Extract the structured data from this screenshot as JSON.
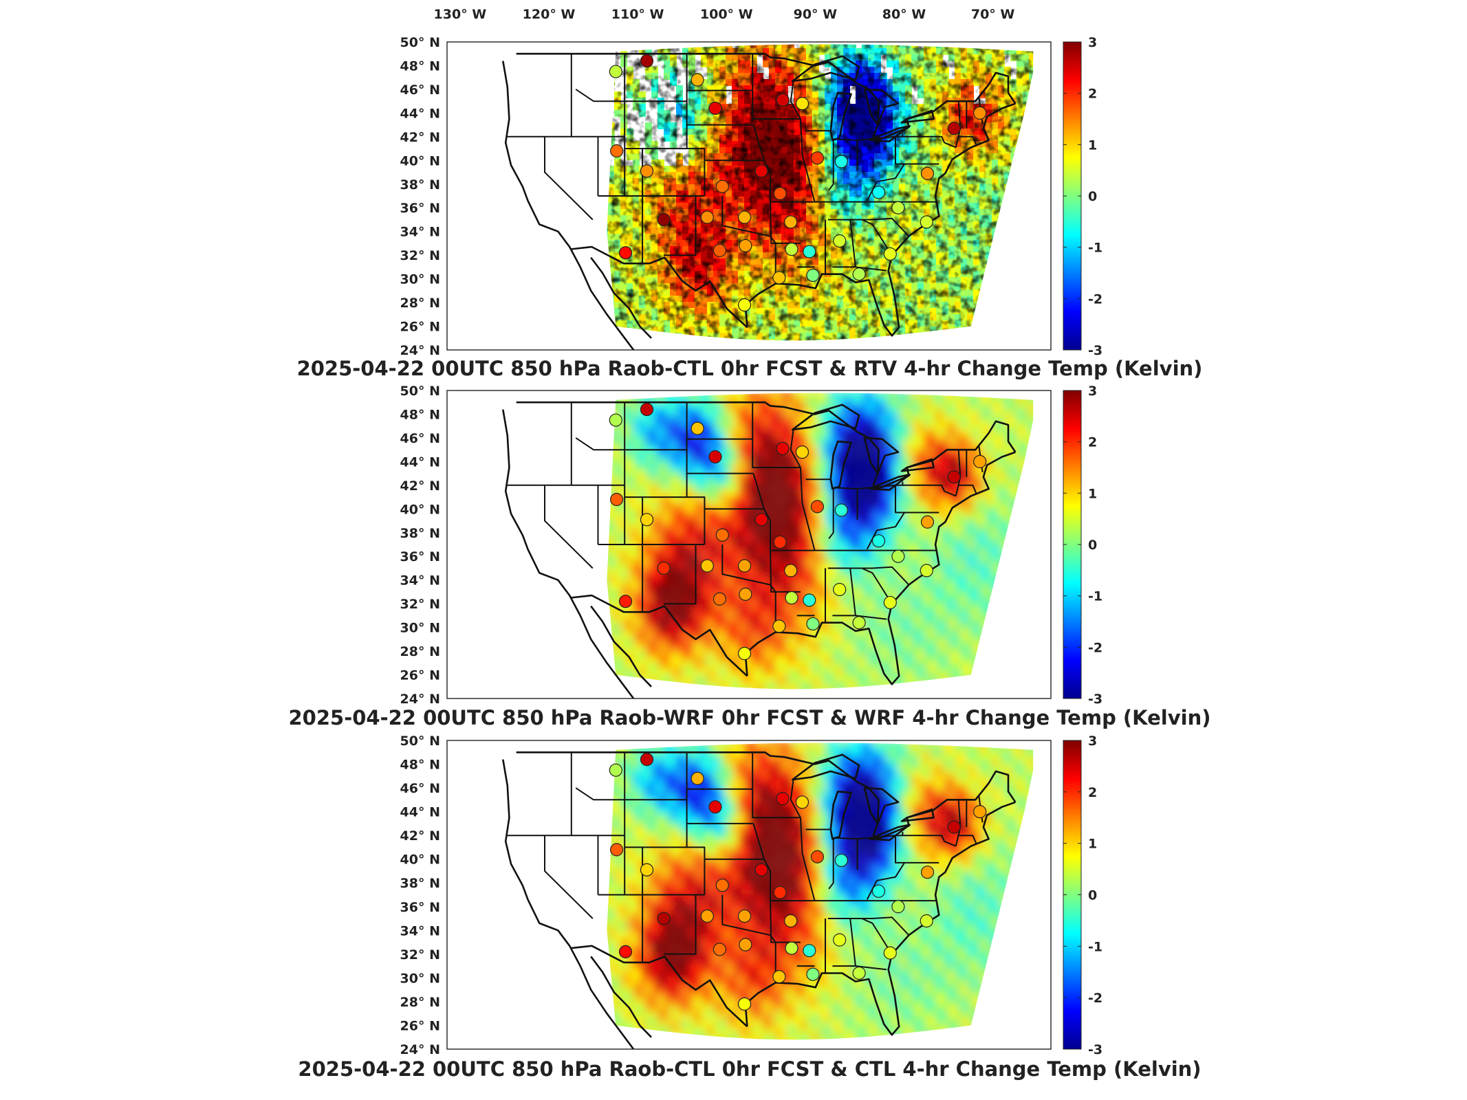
{
  "figure": {
    "top_lon_labels": [
      "130° W",
      "120° W",
      "110° W",
      "100° W",
      "90° W",
      "80° W",
      "70° W"
    ],
    "lat_labels": [
      "50° N",
      "48° N",
      "46° N",
      "44° N",
      "42° N",
      "40° N",
      "38° N",
      "36° N",
      "34° N",
      "32° N",
      "30° N",
      "28° N",
      "26° N",
      "24° N"
    ],
    "colorbar": {
      "min": -3,
      "max": 3,
      "ticks": [
        "3",
        "2",
        "1",
        "0",
        "-1",
        "-2",
        "-3"
      ],
      "colormap": [
        "#00008f",
        "#0000ff",
        "#0080ff",
        "#00ffff",
        "#80ff80",
        "#ffff00",
        "#ff8000",
        "#ff0000",
        "#800000"
      ]
    }
  },
  "panels": [
    {
      "title": "2025-04-22 00UTC 850 hPa Raob-CTL 0hr FCST & RTV 4-hr Change Temp (Kelvin)",
      "field_style": "satellite_retrieval_patchy"
    },
    {
      "title": "2025-04-22 00UTC 850 hPa Raob-WRF 0hr FCST & WRF 4-hr Change Temp (Kelvin)",
      "field_style": "model_smooth"
    },
    {
      "title": "2025-04-22 00UTC 850 hPa Raob-CTL 0hr FCST & CTL 4-hr Change Temp (Kelvin)",
      "field_style": "model_smooth"
    }
  ],
  "raob_stations": [
    {
      "lon": -112.0,
      "lat": 47.5,
      "values": [
        0.4,
        0.3,
        0.3
      ]
    },
    {
      "lon": -108.5,
      "lat": 48.4,
      "values": [
        2.8,
        2.6,
        2.6
      ]
    },
    {
      "lon": -102.8,
      "lat": 46.8,
      "values": [
        1.2,
        1.1,
        1.2
      ]
    },
    {
      "lon": -100.8,
      "lat": 44.4,
      "values": [
        2.4,
        2.5,
        2.4
      ]
    },
    {
      "lon": -111.9,
      "lat": 40.8,
      "values": [
        1.6,
        1.7,
        1.7
      ]
    },
    {
      "lon": -108.5,
      "lat": 39.1,
      "values": [
        1.4,
        1.0,
        1.0
      ]
    },
    {
      "lon": -106.6,
      "lat": 35.0,
      "values": [
        2.9,
        2.0,
        2.7
      ]
    },
    {
      "lon": -110.9,
      "lat": 32.2,
      "values": [
        2.2,
        2.1,
        2.2
      ]
    },
    {
      "lon": -101.7,
      "lat": 35.2,
      "values": [
        1.4,
        1.1,
        1.3
      ]
    },
    {
      "lon": -100.3,
      "lat": 32.4,
      "values": [
        1.7,
        1.6,
        1.6
      ]
    },
    {
      "lon": -97.4,
      "lat": 32.8,
      "values": [
        1.3,
        1.3,
        1.3
      ]
    },
    {
      "lon": -97.5,
      "lat": 35.2,
      "values": [
        1.2,
        1.3,
        1.3
      ]
    },
    {
      "lon": -100.0,
      "lat": 37.8,
      "values": [
        1.6,
        1.6,
        1.6
      ]
    },
    {
      "lon": -97.5,
      "lat": 27.8,
      "values": [
        0.7,
        0.7,
        0.7
      ]
    },
    {
      "lon": -93.6,
      "lat": 30.1,
      "values": [
        1.1,
        1.1,
        1.1
      ]
    },
    {
      "lon": -92.2,
      "lat": 32.5,
      "values": [
        0.4,
        0.4,
        0.4
      ]
    },
    {
      "lon": -89.8,
      "lat": 30.3,
      "values": [
        0.0,
        0.0,
        0.0
      ]
    },
    {
      "lon": -90.2,
      "lat": 32.3,
      "values": [
        -0.5,
        -0.5,
        -0.5
      ]
    },
    {
      "lon": -86.8,
      "lat": 33.2,
      "values": [
        0.5,
        0.6,
        0.6
      ]
    },
    {
      "lon": -84.6,
      "lat": 30.4,
      "values": [
        0.3,
        0.4,
        0.4
      ]
    },
    {
      "lon": -93.5,
      "lat": 37.2,
      "values": [
        1.8,
        2.0,
        2.0
      ]
    },
    {
      "lon": -92.3,
      "lat": 34.8,
      "values": [
        1.2,
        1.2,
        1.2
      ]
    },
    {
      "lon": -95.6,
      "lat": 39.1,
      "values": [
        2.4,
        2.4,
        2.4
      ]
    },
    {
      "lon": -89.3,
      "lat": 40.2,
      "values": [
        1.9,
        1.8,
        1.8
      ]
    },
    {
      "lon": -91.0,
      "lat": 44.8,
      "values": [
        0.9,
        1.0,
        1.0
      ]
    },
    {
      "lon": -93.2,
      "lat": 45.1,
      "values": [
        2.5,
        2.4,
        2.4
      ]
    },
    {
      "lon": -86.6,
      "lat": 39.9,
      "values": [
        -0.6,
        -0.5,
        -0.5
      ]
    },
    {
      "lon": -82.4,
      "lat": 37.3,
      "values": [
        -0.7,
        -0.6,
        -0.6
      ]
    },
    {
      "lon": -80.2,
      "lat": 36.0,
      "values": [
        0.4,
        0.3,
        0.3
      ]
    },
    {
      "lon": -77.0,
      "lat": 34.8,
      "values": [
        0.5,
        0.5,
        0.5
      ]
    },
    {
      "lon": -81.1,
      "lat": 32.1,
      "values": [
        0.6,
        0.6,
        0.6
      ]
    },
    {
      "lon": -76.9,
      "lat": 38.9,
      "values": [
        1.4,
        1.3,
        1.3
      ]
    },
    {
      "lon": -73.9,
      "lat": 42.7,
      "values": [
        2.7,
        2.6,
        2.6
      ]
    },
    {
      "lon": -71.0,
      "lat": 44.0,
      "values": [
        1.4,
        1.3,
        1.3
      ]
    }
  ]
}
